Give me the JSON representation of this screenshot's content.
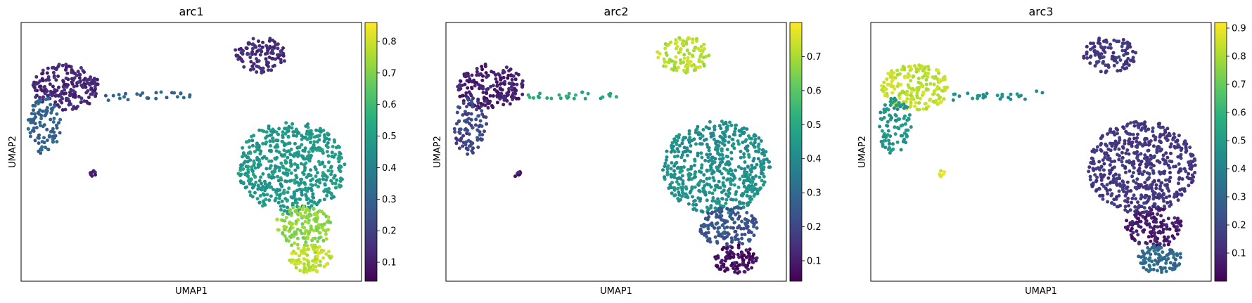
{
  "chart_data": [
    {
      "type": "scatter",
      "title": "arc1",
      "xlabel": "UMAP1",
      "ylabel": "UMAP2",
      "colormap": "viridis",
      "colorbar": {
        "range": [
          0.04,
          0.86
        ],
        "ticks": [
          0.1,
          0.2,
          0.3,
          0.4,
          0.5,
          0.6,
          0.7,
          0.8
        ]
      },
      "clusters": [
        {
          "name": "upper-left",
          "value": 0.13
        },
        {
          "name": "left-lobe",
          "value": 0.3
        },
        {
          "name": "bridge",
          "value": 0.3
        },
        {
          "name": "small-blob",
          "value": 0.12
        },
        {
          "name": "top-right",
          "value": 0.15
        },
        {
          "name": "right-main",
          "value": 0.48
        },
        {
          "name": "right-lower",
          "value": 0.72
        },
        {
          "name": "right-bottom",
          "value": 0.78
        }
      ]
    },
    {
      "type": "scatter",
      "title": "arc2",
      "xlabel": "UMAP1",
      "ylabel": "UMAP2",
      "colormap": "viridis",
      "colorbar": {
        "range": [
          0.04,
          0.8
        ],
        "ticks": [
          0.1,
          0.2,
          0.3,
          0.4,
          0.5,
          0.6,
          0.7
        ]
      },
      "clusters": [
        {
          "name": "upper-left",
          "value": 0.1
        },
        {
          "name": "left-lobe",
          "value": 0.2
        },
        {
          "name": "bridge",
          "value": 0.5
        },
        {
          "name": "small-blob",
          "value": 0.1
        },
        {
          "name": "top-right",
          "value": 0.72
        },
        {
          "name": "right-main",
          "value": 0.42
        },
        {
          "name": "right-lower",
          "value": 0.24
        },
        {
          "name": "right-bottom",
          "value": 0.07
        }
      ]
    },
    {
      "type": "scatter",
      "title": "arc3",
      "xlabel": "UMAP1",
      "ylabel": "UMAP2",
      "colormap": "viridis",
      "colorbar": {
        "range": [
          0.0,
          0.92
        ],
        "ticks": [
          0.1,
          0.2,
          0.3,
          0.4,
          0.5,
          0.6,
          0.7,
          0.8,
          0.9
        ]
      },
      "clusters": [
        {
          "name": "upper-left",
          "value": 0.84
        },
        {
          "name": "left-lobe",
          "value": 0.48
        },
        {
          "name": "bridge",
          "value": 0.45
        },
        {
          "name": "small-blob",
          "value": 0.88
        },
        {
          "name": "top-right",
          "value": 0.15
        },
        {
          "name": "right-main",
          "value": 0.15
        },
        {
          "name": "right-lower",
          "value": 0.07
        },
        {
          "name": "right-bottom",
          "value": 0.32
        }
      ]
    }
  ]
}
